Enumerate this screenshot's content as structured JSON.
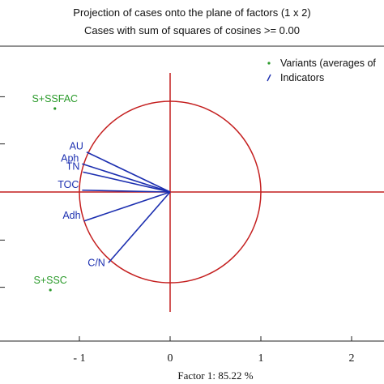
{
  "header": {
    "title": "Projection of cases onto the plane of factors (1 x 2)",
    "subtitle": "Cases with sum of squares of cosines >= 0.00"
  },
  "chart_data": {
    "type": "scatter",
    "title": "Projection of cases onto the plane of factors (1 x 2)",
    "subtitle": "Cases with sum of squares of cosines >= 0.00",
    "xlabel": "Factor 1: 85.22 %",
    "ylabel": "",
    "xlim": [
      -1.9,
      2.3
    ],
    "ylim": [
      -1.55,
      1.6
    ],
    "x_ticks": [
      {
        "value": -1,
        "label": "- 1"
      },
      {
        "value": 0,
        "label": "0"
      },
      {
        "value": 1,
        "label": "1"
      },
      {
        "value": 2,
        "label": "2"
      }
    ],
    "y_ticks": [
      1.05,
      0.53,
      0.0,
      -0.53,
      -1.05
    ],
    "unit_circle": {
      "radius": 1,
      "color": "#c41e1e"
    },
    "axes_color": "#c41e1e",
    "legend": {
      "position": "top-right",
      "entries": [
        {
          "label": "Variants (averages of",
          "color": "#2a9a2a",
          "marker": "dot"
        },
        {
          "label": "Indicators",
          "color": "#1c2fb0",
          "marker": "line"
        }
      ]
    },
    "series": [
      {
        "name": "Variants (averages of",
        "kind": "points",
        "color": "#2a9a2a",
        "points": [
          {
            "label": "S+SSFAC",
            "x": -1.27,
            "y": 0.92
          },
          {
            "label": "S+SSC",
            "x": -1.32,
            "y": -1.08
          }
        ]
      },
      {
        "name": "Indicators",
        "kind": "vectors",
        "color": "#1c2fb0",
        "points": [
          {
            "label": "AU",
            "x": -0.92,
            "y": 0.44
          },
          {
            "label": "Aph",
            "x": -0.97,
            "y": 0.31
          },
          {
            "label": "TN",
            "x": -0.96,
            "y": 0.22
          },
          {
            "label": "TOC",
            "x": -0.97,
            "y": 0.02
          },
          {
            "label": "Adh",
            "x": -0.95,
            "y": -0.32
          },
          {
            "label": "C/N",
            "x": -0.68,
            "y": -0.78
          }
        ]
      }
    ]
  }
}
